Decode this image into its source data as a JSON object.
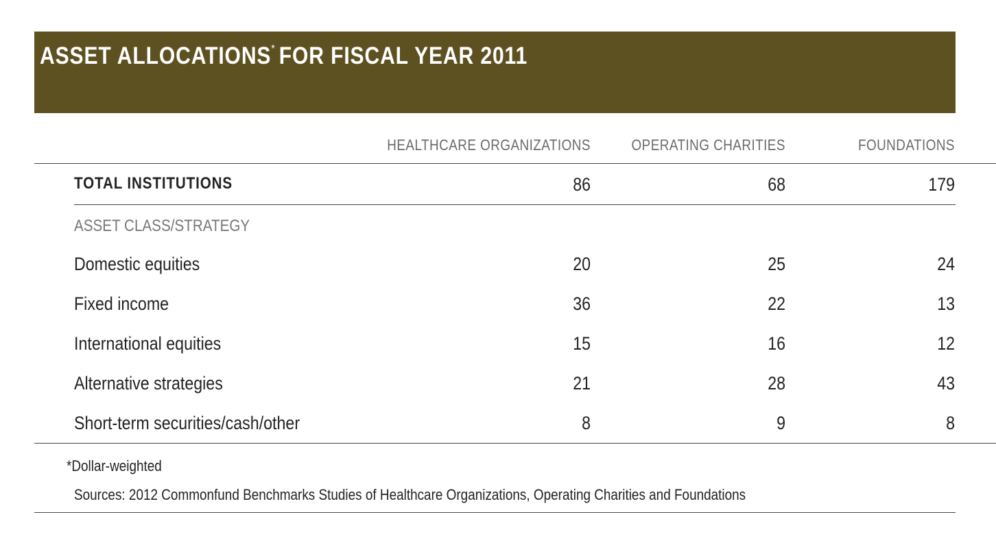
{
  "title": {
    "main": "ASSET ALLOCATIONS",
    "mark": "*",
    "rest": "FOR FISCAL YEAR 2011"
  },
  "columns": [
    "HEALTHCARE ORGANIZATIONS",
    "OPERATING CHARITIES",
    "FOUNDATIONS"
  ],
  "total_row": {
    "label": "TOTAL INSTITUTIONS",
    "values": [
      "86",
      "68",
      "179"
    ]
  },
  "section_label": "ASSET CLASS/STRATEGY",
  "rows": [
    {
      "label": "Domestic equities",
      "values": [
        "20",
        "25",
        "24"
      ]
    },
    {
      "label": "Fixed income",
      "values": [
        "36",
        "22",
        "13"
      ]
    },
    {
      "label": "International equities",
      "values": [
        "15",
        "16",
        "12"
      ]
    },
    {
      "label": "Alternative strategies",
      "values": [
        "21",
        "28",
        "43"
      ]
    },
    {
      "label": "Short-term securities/cash/other",
      "values": [
        "8",
        "9",
        "8"
      ]
    }
  ],
  "footnote": "*Dollar-weighted",
  "sources": "Sources: 2012 Commonfund Benchmarks Studies of Healthcare Organizations, Operating Charities and Foundations",
  "colors": {
    "banner": "#5e5121",
    "title_text": "#ffffff",
    "header_text": "#6b6b6b"
  }
}
